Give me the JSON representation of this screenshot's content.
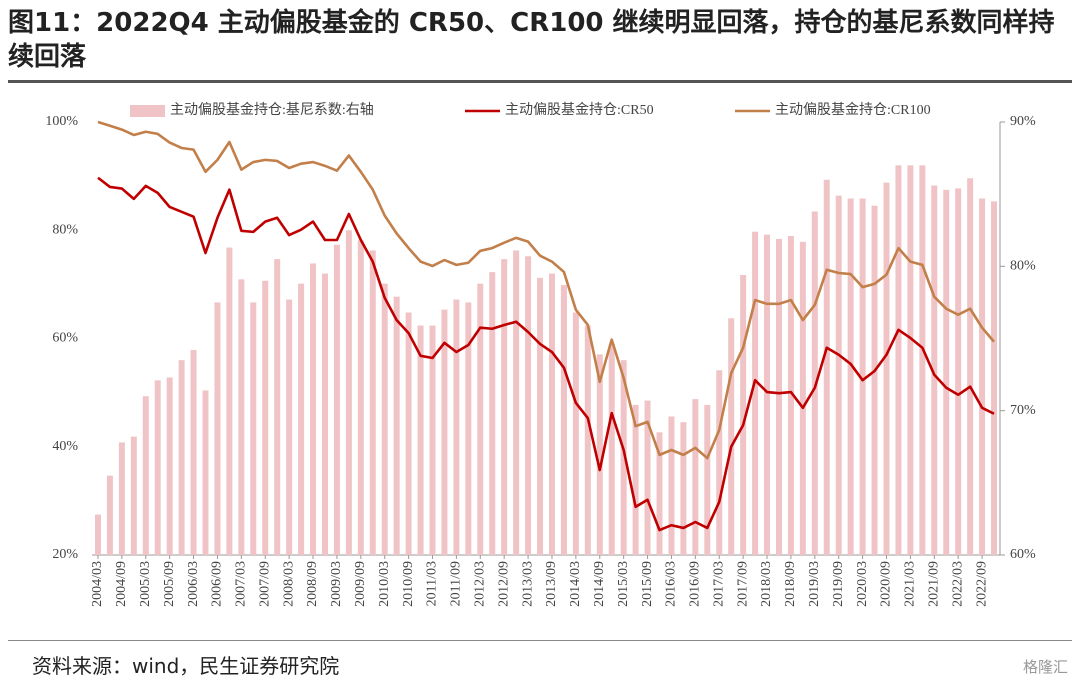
{
  "chart_data": {
    "type": "combo",
    "title": "图11：2022Q4 主动偏股基金的 CR50、CR100 继续明显回落，持仓的基尼系数同样持续回落",
    "source": "资料来源：wind，民生证券研究院",
    "watermark": "格隆汇",
    "categories": [
      "2004/03",
      null,
      "2004/09",
      null,
      "2005/03",
      null,
      "2005/09",
      null,
      "2006/03",
      null,
      "2006/09",
      null,
      "2007/03",
      null,
      "2007/09",
      null,
      "2008/03",
      null,
      "2008/09",
      null,
      "2009/03",
      null,
      "2009/09",
      null,
      "2010/03",
      null,
      "2010/09",
      null,
      "2011/03",
      null,
      "2011/09",
      null,
      "2012/03",
      null,
      "2012/09",
      null,
      "2013/03",
      null,
      "2013/09",
      null,
      "2014/03",
      null,
      "2014/09",
      null,
      "2015/03",
      null,
      "2015/09",
      null,
      "2016/03",
      null,
      "2016/09",
      null,
      "2017/03",
      null,
      "2017/09",
      null,
      "2018/03",
      null,
      "2018/09",
      null,
      "2019/03",
      null,
      "2019/09",
      null,
      "2020/03",
      null,
      "2020/09",
      null,
      "2021/03",
      null,
      "2021/09",
      null,
      "2022/03",
      null,
      "2022/09",
      null
    ],
    "series": [
      {
        "name": "主动偏股基金持仓:基尼系数:右轴",
        "type": "bar",
        "axis": "y2",
        "color": "#f0c4c6",
        "values": [
          62.8,
          65.5,
          67.8,
          68.2,
          71.0,
          72.1,
          72.3,
          73.5,
          74.2,
          71.4,
          77.5,
          81.3,
          79.1,
          77.5,
          79.0,
          80.5,
          77.7,
          78.8,
          80.2,
          79.5,
          81.5,
          82.5,
          81.8,
          81.1,
          78.8,
          77.9,
          76.8,
          75.9,
          75.9,
          77.0,
          77.7,
          77.5,
          78.8,
          79.6,
          80.5,
          81.1,
          80.7,
          79.2,
          79.5,
          78.7,
          76.8,
          75.9,
          73.9,
          74.6,
          73.5,
          70.4,
          70.7,
          68.5,
          69.6,
          69.2,
          70.8,
          70.4,
          72.8,
          76.4,
          79.4,
          82.4,
          82.2,
          81.9,
          82.1,
          81.7,
          83.8,
          86.0,
          84.9,
          84.7,
          84.7,
          84.2,
          85.8,
          87.0,
          87.0,
          87.0,
          85.6,
          85.3,
          85.4,
          86.1,
          84.7,
          84.5
        ]
      },
      {
        "name": "主动偏股基金持仓:CR50",
        "type": "line",
        "color": "#c00000",
        "values": [
          89.7,
          88.0,
          87.7,
          85.8,
          88.2,
          86.9,
          84.3,
          83.4,
          82.5,
          75.8,
          82.3,
          87.5,
          79.9,
          79.7,
          81.6,
          82.3,
          79.1,
          80.1,
          81.6,
          78.2,
          78.2,
          83.0,
          78.2,
          74.2,
          67.5,
          63.4,
          61.0,
          56.8,
          56.4,
          59.2,
          57.5,
          58.8,
          62.0,
          61.8,
          62.5,
          63.1,
          61.2,
          59.0,
          57.5,
          54.6,
          48.1,
          45.3,
          35.7,
          46.2,
          39.4,
          28.9,
          30.2,
          24.6,
          25.5,
          25.0,
          26.1,
          25.0,
          29.8,
          40.0,
          44.0,
          52.3,
          50.1,
          49.9,
          50.1,
          47.2,
          50.9,
          58.3,
          57.0,
          55.3,
          52.3,
          54.0,
          57.0,
          61.6,
          60.1,
          58.3,
          53.3,
          50.9,
          49.6,
          51.1,
          47.2,
          46.1
        ]
      },
      {
        "name": "主动偏股基金持仓:CR100",
        "type": "line",
        "color": "#c27f4a",
        "values": [
          100.0,
          99.3,
          98.6,
          97.6,
          98.2,
          97.8,
          96.2,
          95.2,
          94.9,
          90.8,
          93.0,
          96.3,
          91.2,
          92.6,
          93.0,
          92.8,
          91.5,
          92.3,
          92.6,
          91.9,
          91.0,
          93.8,
          90.8,
          87.5,
          82.7,
          79.4,
          76.7,
          74.2,
          73.4,
          74.5,
          73.6,
          74.0,
          76.2,
          76.7,
          77.7,
          78.6,
          77.9,
          75.3,
          74.2,
          72.3,
          65.3,
          62.5,
          52.0,
          59.8,
          52.7,
          43.8,
          44.6,
          38.5,
          39.4,
          38.5,
          39.8,
          37.9,
          43.1,
          53.6,
          58.3,
          67.1,
          66.4,
          66.4,
          67.1,
          63.4,
          66.2,
          72.7,
          72.1,
          71.9,
          69.5,
          70.1,
          71.8,
          76.7,
          74.2,
          73.6,
          67.7,
          65.5,
          64.4,
          65.5,
          62.0,
          59.4
        ]
      }
    ],
    "ylim": [
      20,
      100
    ],
    "yticks": [
      {
        "value": 20,
        "label": "20%"
      },
      {
        "value": 40,
        "label": "40%"
      },
      {
        "value": 60,
        "label": "60%"
      },
      {
        "value": 80,
        "label": "80%"
      },
      {
        "value": 100,
        "label": "100%"
      }
    ],
    "y2lim": [
      60,
      90
    ],
    "y2ticks": [
      {
        "value": 60,
        "label": "60%"
      },
      {
        "value": 70,
        "label": "70%"
      },
      {
        "value": 80,
        "label": "80%"
      },
      {
        "value": 90,
        "label": "90%"
      }
    ],
    "legend": "top"
  }
}
